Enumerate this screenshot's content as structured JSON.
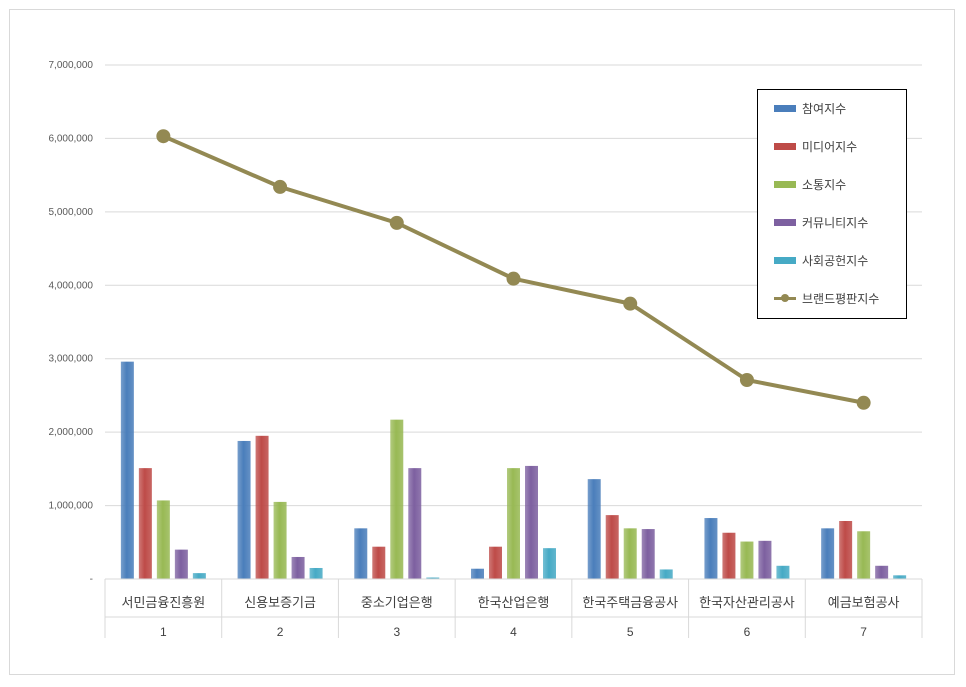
{
  "chart_data": {
    "type": "bar",
    "title": "",
    "xlabel": "",
    "ylabel": "",
    "ylim": [
      0,
      7000000
    ],
    "yticks": [
      0,
      1000000,
      2000000,
      3000000,
      4000000,
      5000000,
      6000000,
      7000000
    ],
    "ytick_labels": [
      "-",
      "1,000,000",
      "2,000,000",
      "3,000,000",
      "4,000,000",
      "5,000,000",
      "6,000,000",
      "7,000,000"
    ],
    "categories": [
      "서민금융진흥원",
      "신용보증기금",
      "중소기업은행",
      "한국산업은행",
      "한국주택금융공사",
      "한국자산관리공사",
      "예금보험공사"
    ],
    "category_index": [
      "1",
      "2",
      "3",
      "4",
      "5",
      "6",
      "7"
    ],
    "grid": true,
    "legend_position": "top-right",
    "series": [
      {
        "name": "참여지수",
        "type": "bar",
        "color": "#4a7ebb",
        "values": [
          2960000,
          1880000,
          690000,
          140000,
          1360000,
          830000,
          690000
        ]
      },
      {
        "name": "미디어지수",
        "type": "bar",
        "color": "#be4b48",
        "values": [
          1510000,
          1950000,
          440000,
          440000,
          870000,
          630000,
          790000
        ]
      },
      {
        "name": "소통지수",
        "type": "bar",
        "color": "#98b954",
        "values": [
          1070000,
          1050000,
          2170000,
          1510000,
          690000,
          510000,
          650000
        ]
      },
      {
        "name": "커뮤니티지수",
        "type": "bar",
        "color": "#7d60a0",
        "values": [
          400000,
          300000,
          1510000,
          1540000,
          680000,
          520000,
          180000
        ]
      },
      {
        "name": "사회공헌지수",
        "type": "bar",
        "color": "#46aac5",
        "values": [
          80000,
          150000,
          20000,
          420000,
          130000,
          180000,
          50000
        ]
      },
      {
        "name": "브랜드평판지수",
        "type": "line",
        "color": "#938953",
        "values": [
          6030000,
          5340000,
          4850000,
          4090000,
          3750000,
          2710000,
          2400000
        ]
      }
    ]
  }
}
